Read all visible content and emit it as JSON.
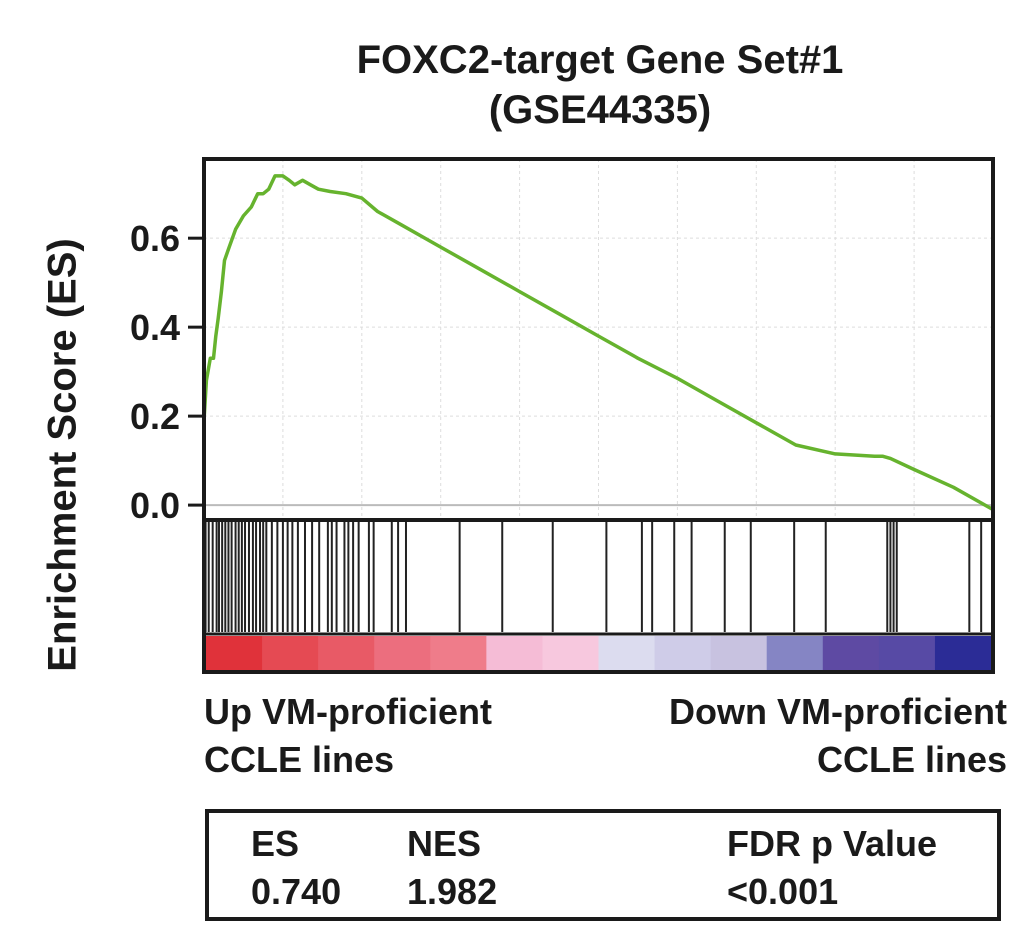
{
  "chart_data": {
    "type": "line",
    "title": "FOXC2-target Gene Set#1",
    "subtitle": "(GSE44335)",
    "ylabel": "Enrichment Score (ES)",
    "xlabel": "",
    "ylim": [
      -0.02,
      0.76
    ],
    "yticks": [
      "0.6",
      "0.4",
      "0.2",
      "0.0"
    ],
    "ytick_values": [
      0.6,
      0.4,
      0.2,
      0.0
    ],
    "xlim": [
      0,
      1
    ],
    "grid": true,
    "series": [
      {
        "x": [
          0,
          0.003,
          0.008,
          0.012,
          0.015,
          0.018,
          0.022,
          0.026,
          0.032,
          0.04,
          0.05,
          0.06,
          0.068,
          0.075,
          0.082,
          0.09,
          0.1,
          0.108,
          0.115,
          0.125,
          0.135,
          0.145,
          0.16,
          0.18,
          0.2,
          0.22,
          0.25,
          0.3,
          0.35,
          0.4,
          0.45,
          0.5,
          0.55,
          0.6,
          0.65,
          0.7,
          0.75,
          0.8,
          0.85,
          0.86,
          0.87,
          0.9,
          0.95,
          1.0
        ],
        "y": [
          0.19,
          0.28,
          0.33,
          0.33,
          0.38,
          0.42,
          0.48,
          0.55,
          0.58,
          0.62,
          0.65,
          0.67,
          0.7,
          0.7,
          0.71,
          0.74,
          0.74,
          0.73,
          0.72,
          0.73,
          0.72,
          0.71,
          0.705,
          0.7,
          0.69,
          0.66,
          0.63,
          0.58,
          0.53,
          0.48,
          0.43,
          0.38,
          0.33,
          0.285,
          0.235,
          0.185,
          0.135,
          0.115,
          0.11,
          0.11,
          0.105,
          0.08,
          0.04,
          -0.01
        ]
      }
    ],
    "hits": [
      0.002,
      0.006,
      0.011,
      0.016,
      0.019,
      0.023,
      0.027,
      0.031,
      0.035,
      0.04,
      0.044,
      0.048,
      0.052,
      0.057,
      0.062,
      0.066,
      0.071,
      0.075,
      0.079,
      0.086,
      0.093,
      0.1,
      0.106,
      0.112,
      0.119,
      0.128,
      0.137,
      0.146,
      0.157,
      0.162,
      0.168,
      0.178,
      0.183,
      0.189,
      0.196,
      0.209,
      0.215,
      0.238,
      0.246,
      0.256,
      0.324,
      0.378,
      0.442,
      0.51,
      0.555,
      0.568,
      0.596,
      0.618,
      0.66,
      0.693,
      0.748,
      0.788,
      0.866,
      0.87,
      0.874,
      0.878,
      0.97,
      0.985
    ],
    "color_bar": [
      "#e0323a",
      "#e54a53",
      "#e85a66",
      "#ec6e7e",
      "#ef7c8a",
      "#f5bcd6",
      "#f7c8de",
      "#dcdcef",
      "#cfcce8",
      "#c8c2e0",
      "#8585c4",
      "#5e4aa3",
      "#574aa5",
      "#2b2c96"
    ],
    "colors": {
      "line": "#66b32e",
      "grid": "#dddddd",
      "zero_line": "#bbbbbb",
      "frame": "#1a1a1a"
    }
  },
  "labels": {
    "left_line1": "Up VM-proficient",
    "left_line2": "CCLE lines",
    "right_line1": "Down VM-proficient",
    "right_line2": "CCLE lines"
  },
  "stats": {
    "es_label": "ES",
    "es_value": "0.740",
    "nes_label": "NES",
    "nes_value": "1.982",
    "fdr_label": "FDR p Value",
    "fdr_value": "<0.001"
  }
}
